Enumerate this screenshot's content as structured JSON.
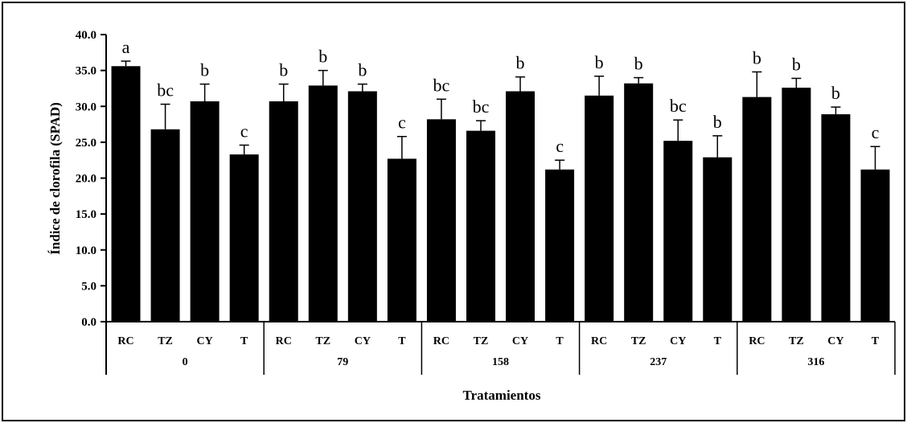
{
  "chart_data": {
    "type": "bar",
    "title": "",
    "xlabel": "Tratamientos",
    "ylabel": "Índice de clorofila  (SPAD)",
    "ylim": [
      0,
      40
    ],
    "yticks": [
      "0.0",
      "5.0",
      "10.0",
      "15.0",
      "20.0",
      "25.0",
      "30.0",
      "35.0",
      "40.0"
    ],
    "grid": false,
    "legend": "none",
    "bar_color": "#000000",
    "groups": [
      {
        "label": "0",
        "categories": [
          "RC",
          "TZ",
          "CY",
          "T"
        ],
        "values": [
          35.6,
          26.8,
          30.7,
          23.3
        ],
        "errors": [
          0.7,
          3.5,
          2.4,
          1.3
        ],
        "letters": [
          "a",
          "bc",
          "b",
          "c"
        ]
      },
      {
        "label": "79",
        "categories": [
          "RC",
          "TZ",
          "CY",
          "T"
        ],
        "values": [
          30.7,
          32.9,
          32.1,
          22.7
        ],
        "errors": [
          2.4,
          2.1,
          1.0,
          3.1
        ],
        "letters": [
          "b",
          "b",
          "b",
          "c"
        ]
      },
      {
        "label": "158",
        "categories": [
          "RC",
          "TZ",
          "CY",
          "T"
        ],
        "values": [
          28.2,
          26.6,
          32.1,
          21.2
        ],
        "errors": [
          2.8,
          1.4,
          2.0,
          1.3
        ],
        "letters": [
          "bc",
          "bc",
          "b",
          "c"
        ]
      },
      {
        "label": "237",
        "categories": [
          "RC",
          "TZ",
          "CY",
          "T"
        ],
        "values": [
          31.5,
          33.2,
          25.2,
          22.9
        ],
        "errors": [
          2.7,
          0.8,
          2.9,
          3.0
        ],
        "letters": [
          "b",
          "b",
          "bc",
          "b"
        ]
      },
      {
        "label": "316",
        "categories": [
          "RC",
          "TZ",
          "CY",
          "T"
        ],
        "values": [
          31.3,
          32.6,
          28.9,
          21.2
        ],
        "errors": [
          3.5,
          1.3,
          1.0,
          3.2
        ],
        "letters": [
          "b",
          "b",
          "b",
          "c"
        ]
      }
    ]
  }
}
